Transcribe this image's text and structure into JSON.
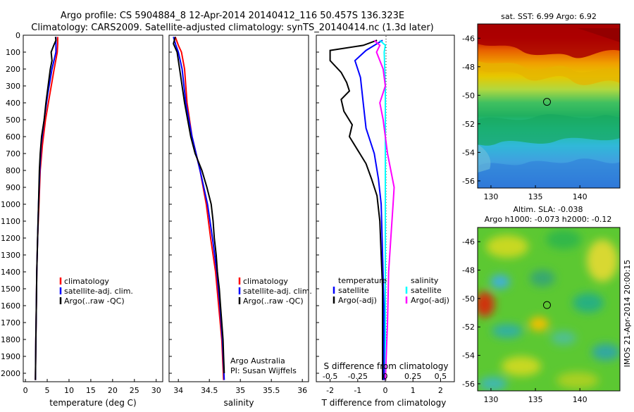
{
  "title": {
    "line1": "Argo profile: CS 5904884_8 12-Apr-2014 20140412_116 50.457S 136.323E",
    "line2": "Climatology: CARS2009. Satellite-adjusted climatology: synTS_20140414.nc (1.3d later)"
  },
  "colors": {
    "clim": "#ff0000",
    "sat": "#0000ff",
    "argo": "#000000",
    "sat_s": "#00ffff",
    "argo_s": "#ff00ff"
  },
  "chart_data": [
    {
      "type": "line",
      "panel": "temperature",
      "xlabel": "temperature (deg C)",
      "xlim": [
        -0.5,
        31.5
      ],
      "xticks": [
        0,
        5,
        10,
        15,
        20,
        25,
        30
      ],
      "ylim": [
        2050,
        0
      ],
      "yticks": [
        0,
        100,
        200,
        300,
        400,
        500,
        600,
        700,
        800,
        900,
        1000,
        1100,
        1200,
        1300,
        1400,
        1500,
        1600,
        1700,
        1800,
        1900,
        2000
      ],
      "legend": [
        "climatology",
        "satellite-adj. clim.",
        "Argo(..raw -QC)"
      ],
      "series": [
        {
          "name": "climatology",
          "color": "#ff0000",
          "points": [
            [
              7.4,
              10
            ],
            [
              7.4,
              50
            ],
            [
              7.3,
              100
            ],
            [
              6.6,
              200
            ],
            [
              5.6,
              350
            ],
            [
              4.6,
              500
            ],
            [
              3.9,
              650
            ],
            [
              3.4,
              800
            ],
            [
              3.1,
              1000
            ],
            [
              2.8,
              1200
            ],
            [
              2.6,
              1400
            ],
            [
              2.5,
              1600
            ],
            [
              2.4,
              1800
            ],
            [
              2.3,
              2040
            ]
          ]
        },
        {
          "name": "satellite-adj. clim.",
          "color": "#0000ff",
          "points": [
            [
              7.0,
              10
            ],
            [
              7.0,
              50
            ],
            [
              7.0,
              100
            ],
            [
              6.1,
              200
            ],
            [
              5.1,
              350
            ],
            [
              4.3,
              500
            ],
            [
              3.6,
              650
            ],
            [
              3.3,
              800
            ],
            [
              3.0,
              1000
            ],
            [
              2.8,
              1200
            ],
            [
              2.6,
              1400
            ],
            [
              2.5,
              1600
            ],
            [
              2.4,
              1800
            ],
            [
              2.3,
              2040
            ]
          ]
        },
        {
          "name": "Argo(..raw -QC)",
          "color": "#000000",
          "points": [
            [
              6.9,
              10
            ],
            [
              7.0,
              30
            ],
            [
              6.5,
              60
            ],
            [
              5.9,
              100
            ],
            [
              6.1,
              150
            ],
            [
              5.7,
              200
            ],
            [
              5.2,
              300
            ],
            [
              4.7,
              400
            ],
            [
              4.3,
              500
            ],
            [
              3.7,
              600
            ],
            [
              3.4,
              700
            ],
            [
              3.2,
              800
            ],
            [
              3.0,
              1000
            ],
            [
              2.8,
              1200
            ],
            [
              2.6,
              1400
            ],
            [
              2.5,
              1600
            ],
            [
              2.4,
              1800
            ],
            [
              2.3,
              2040
            ]
          ]
        }
      ]
    },
    {
      "type": "line",
      "panel": "salinity",
      "xlabel": "salinity",
      "xlim": [
        33.85,
        36.1
      ],
      "xticks": [
        34,
        34.5,
        35,
        35.5,
        36
      ],
      "ylim": [
        2050,
        0
      ],
      "legend": [
        "climatology",
        "satellite-adj. clim.",
        "Argo(..raw -QC)"
      ],
      "series": [
        {
          "name": "climatology",
          "color": "#ff0000",
          "points": [
            [
              33.95,
              10
            ],
            [
              34.0,
              60
            ],
            [
              34.05,
              100
            ],
            [
              34.1,
              200
            ],
            [
              34.14,
              400
            ],
            [
              34.22,
              600
            ],
            [
              34.35,
              800
            ],
            [
              34.45,
              1000
            ],
            [
              34.52,
              1200
            ],
            [
              34.6,
              1400
            ],
            [
              34.65,
              1600
            ],
            [
              34.7,
              1800
            ],
            [
              34.73,
              2040
            ]
          ]
        },
        {
          "name": "satellite-adj. clim.",
          "color": "#0000ff",
          "points": [
            [
              33.92,
              10
            ],
            [
              33.96,
              60
            ],
            [
              34.0,
              100
            ],
            [
              34.06,
              200
            ],
            [
              34.12,
              400
            ],
            [
              34.22,
              600
            ],
            [
              34.35,
              800
            ],
            [
              34.47,
              1000
            ],
            [
              34.55,
              1200
            ],
            [
              34.62,
              1400
            ],
            [
              34.67,
              1600
            ],
            [
              34.71,
              1800
            ],
            [
              34.74,
              2040
            ]
          ]
        },
        {
          "name": "Argo(..raw -QC)",
          "color": "#000000",
          "points": [
            [
              33.95,
              10
            ],
            [
              33.92,
              50
            ],
            [
              33.98,
              100
            ],
            [
              34.02,
              200
            ],
            [
              34.06,
              300
            ],
            [
              34.1,
              400
            ],
            [
              34.15,
              500
            ],
            [
              34.2,
              600
            ],
            [
              34.27,
              700
            ],
            [
              34.38,
              800
            ],
            [
              34.46,
              900
            ],
            [
              34.53,
              1000
            ],
            [
              34.56,
              1100
            ],
            [
              34.58,
              1200
            ],
            [
              34.61,
              1300
            ],
            [
              34.63,
              1400
            ],
            [
              34.66,
              1500
            ],
            [
              34.68,
              1600
            ],
            [
              34.7,
              1700
            ],
            [
              34.72,
              1800
            ],
            [
              34.73,
              1900
            ],
            [
              34.74,
              2000
            ]
          ]
        }
      ],
      "annotations": [
        "Argo Australia",
        "PI: Susan Wijffels"
      ]
    },
    {
      "type": "line",
      "panel": "differences",
      "xlabel_bottom": "T difference from climatology",
      "xlabel_top": "S difference from climatology",
      "xlim_T": [
        -2.5,
        2.5
      ],
      "xticks_T": [
        -2,
        -1,
        0,
        1,
        2
      ],
      "xlim_S": [
        -0.625,
        0.625
      ],
      "xticks_S": [
        -0.5,
        -0.25,
        0,
        0.25,
        0.5
      ],
      "xticklabels_S": [
        "-0.5",
        "-0.25",
        "0",
        "0.25",
        "0.5"
      ],
      "legend_headers": [
        "temperature",
        "salinity"
      ],
      "legend": [
        "satellite",
        "Argo(-adj)",
        "satellite",
        "Argo(-adj)"
      ],
      "series": [
        {
          "name": "T satellite",
          "color": "#0000ff",
          "points": [
            [
              -0.1,
              30
            ],
            [
              -0.7,
              90
            ],
            [
              -1.1,
              150
            ],
            [
              -0.9,
              250
            ],
            [
              -0.8,
              400
            ],
            [
              -0.7,
              550
            ],
            [
              -0.4,
              700
            ],
            [
              -0.25,
              850
            ],
            [
              -0.15,
              1000
            ],
            [
              -0.1,
              1300
            ],
            [
              -0.05,
              1600
            ],
            [
              -0.05,
              2040
            ]
          ]
        },
        {
          "name": "T Argo(-adj)",
          "color": "#000000",
          "points": [
            [
              -0.3,
              30
            ],
            [
              -0.8,
              60
            ],
            [
              -2.0,
              90
            ],
            [
              -2.0,
              150
            ],
            [
              -1.6,
              220
            ],
            [
              -1.4,
              280
            ],
            [
              -1.3,
              330
            ],
            [
              -1.6,
              380
            ],
            [
              -1.5,
              450
            ],
            [
              -1.2,
              530
            ],
            [
              -1.3,
              600
            ],
            [
              -1.0,
              680
            ],
            [
              -0.7,
              760
            ],
            [
              -0.5,
              850
            ],
            [
              -0.3,
              950
            ],
            [
              -0.2,
              1100
            ],
            [
              -0.15,
              1300
            ],
            [
              -0.1,
              1500
            ],
            [
              -0.1,
              1700
            ],
            [
              -0.1,
              2040
            ]
          ]
        },
        {
          "name": "S satellite",
          "color": "#00ffff",
          "points": [
            [
              -0.05,
              30
            ],
            [
              0.0,
              60
            ],
            [
              -0.01,
              100
            ],
            [
              0.0,
              300
            ],
            [
              0.0,
              700
            ],
            [
              0.0,
              1200
            ],
            [
              0.0,
              2040
            ]
          ]
        },
        {
          "name": "S Argo(-adj)",
          "color": "#ff00ff",
          "points": [
            [
              -0.1,
              30
            ],
            [
              -0.05,
              60
            ],
            [
              -0.08,
              100
            ],
            [
              -0.02,
              200
            ],
            [
              0.0,
              300
            ],
            [
              -0.05,
              400
            ],
            [
              -0.02,
              500
            ],
            [
              0.0,
              600
            ],
            [
              0.02,
              700
            ],
            [
              0.05,
              800
            ],
            [
              0.08,
              900
            ],
            [
              0.07,
              1000
            ],
            [
              0.05,
              1200
            ],
            [
              0.03,
              1400
            ],
            [
              0.02,
              1700
            ],
            [
              0.0,
              2040
            ]
          ]
        }
      ]
    },
    {
      "type": "heatmap",
      "panel": "SST map",
      "title": "sat. SST: 6.99 Argo: 6.92",
      "xlim": [
        128.5,
        144.5
      ],
      "ylim": [
        -56.5,
        -45
      ],
      "xticks": [
        130,
        135,
        140
      ],
      "yticks": [
        -46,
        -48,
        -50,
        -52,
        -54,
        -56
      ],
      "marker": [
        136.3,
        -50.46
      ]
    },
    {
      "type": "heatmap",
      "panel": "SLA map",
      "title_line1": "Altim. SLA: -0.038",
      "title_line2": "Argo h1000: -0.073 h2000: -0.12",
      "xlim": [
        128.5,
        144.5
      ],
      "ylim": [
        -56.5,
        -45
      ],
      "xticks": [
        130,
        135,
        140
      ],
      "yticks": [
        -46,
        -48,
        -50,
        -52,
        -54,
        -56
      ],
      "marker": [
        136.3,
        -50.46
      ],
      "side_label": "IMOS 21-Apr-2014 20:00:15"
    }
  ]
}
